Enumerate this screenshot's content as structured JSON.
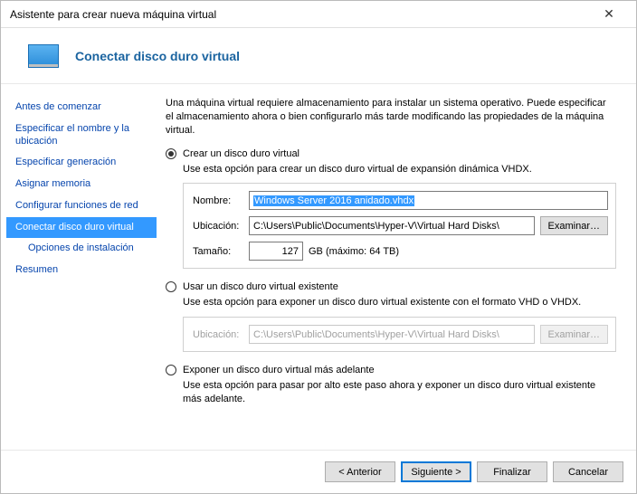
{
  "window": {
    "title": "Asistente para crear nueva máquina virtual",
    "close_glyph": "✕"
  },
  "header": {
    "title": "Conectar disco duro virtual"
  },
  "sidebar": {
    "items": [
      {
        "label": "Antes de comenzar",
        "active": false,
        "indent": false
      },
      {
        "label": "Especificar el nombre y la ubicación",
        "active": false,
        "indent": false
      },
      {
        "label": "Especificar generación",
        "active": false,
        "indent": false
      },
      {
        "label": "Asignar memoria",
        "active": false,
        "indent": false
      },
      {
        "label": "Configurar funciones de red",
        "active": false,
        "indent": false
      },
      {
        "label": "Conectar disco duro virtual",
        "active": true,
        "indent": false
      },
      {
        "label": "Opciones de instalación",
        "active": false,
        "indent": true
      },
      {
        "label": "Resumen",
        "active": false,
        "indent": false
      }
    ]
  },
  "content": {
    "intro": "Una máquina virtual requiere almacenamiento para instalar un sistema operativo. Puede especificar el almacenamiento ahora o bien configurarlo más tarde modificando las propiedades de la máquina virtual.",
    "option_create": {
      "label": "Crear un disco duro virtual",
      "desc": "Use esta opción para crear un disco duro virtual de expansión dinámica VHDX.",
      "name_label": "Nombre:",
      "name_value": "Windows Server 2016 anidado.vhdx",
      "location_label": "Ubicación:",
      "location_value": "C:\\Users\\Public\\Documents\\Hyper-V\\Virtual Hard Disks\\",
      "browse_label": "Examinar…",
      "size_label": "Tamaño:",
      "size_value": "127",
      "size_suffix": "GB (máximo: 64 TB)"
    },
    "option_existing": {
      "label": "Usar un disco duro virtual existente",
      "desc": "Use esta opción para exponer un disco duro virtual existente con el formato VHD o VHDX.",
      "location_label": "Ubicación:",
      "location_value": "C:\\Users\\Public\\Documents\\Hyper-V\\Virtual Hard Disks\\",
      "browse_label": "Examinar…"
    },
    "option_later": {
      "label": "Exponer un disco duro virtual más adelante",
      "desc": "Use esta opción para pasar por alto este paso ahora y exponer un disco duro virtual existente más adelante."
    }
  },
  "footer": {
    "prev": "< Anterior",
    "next": "Siguiente >",
    "finish": "Finalizar",
    "cancel": "Cancelar"
  },
  "colors": {
    "accent": "#3399ff",
    "link": "#0645ad",
    "header_text": "#1b64a0",
    "border": "#bbbbbb",
    "btn_bg": "#e1e1e1",
    "btn_border": "#adadad",
    "disabled_text": "#a0a0a0"
  }
}
